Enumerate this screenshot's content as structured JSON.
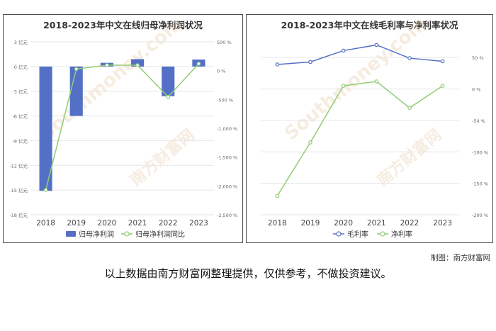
{
  "credit": "制图：南方财富网",
  "disclaimer": "以上数据由南方财富网整理提供，仅供参考，不做投资建议。",
  "watermark": {
    "brand_cn": "南方财富网",
    "brand_en": "Southmoney.com"
  },
  "colors": {
    "bar": "#5470c6",
    "green": "#91cc75",
    "blue": "#5470c6",
    "grid": "#e6e6e6",
    "axis_text": "#666666"
  },
  "chart_data": [
    {
      "type": "bar",
      "title": "2018-2023年中文在线归母净利润状况",
      "categories": [
        "2018",
        "2019",
        "2020",
        "2021",
        "2022",
        "2023"
      ],
      "y_ticks": [
        "3 亿元",
        "0 亿元",
        "-3 亿元",
        "-6 亿元",
        "-9 亿元",
        "-12 亿元",
        "-15 亿元",
        "-18 亿元"
      ],
      "y2_ticks": [
        "500 %",
        "0 %",
        "-500 %",
        "-1,000 %",
        "-1,500 %",
        "-2,000 %",
        "-2,500 %"
      ],
      "ylim": [
        -18,
        3
      ],
      "y2lim": [
        -2500,
        500
      ],
      "series": [
        {
          "name": "归母净利润",
          "type": "bar",
          "axis": "left",
          "values": [
            -15.1,
            -6.0,
            0.45,
            0.9,
            -3.6,
            0.85
          ]
        },
        {
          "name": "归母净利润同比",
          "type": "line",
          "axis": "right",
          "values": [
            -2070,
            28,
            95,
            95,
            -455,
            120
          ]
        }
      ],
      "legend_position": "bottom"
    },
    {
      "type": "line",
      "title": "2018-2023年中文在线毛利率与净利率状况",
      "categories": [
        "2018",
        "2019",
        "2020",
        "2021",
        "2022",
        "2023"
      ],
      "y_ticks": [
        "50 %",
        "0 %",
        "-50 %",
        "-100 %",
        "-150 %",
        "-200 %"
      ],
      "ylim": [
        -200,
        75
      ],
      "series": [
        {
          "name": "毛利率",
          "values": [
            39,
            43,
            61,
            70,
            49,
            44
          ]
        },
        {
          "name": "净利率",
          "values": [
            -170,
            -85,
            5,
            12,
            -30,
            5
          ]
        }
      ],
      "legend_position": "bottom"
    }
  ]
}
